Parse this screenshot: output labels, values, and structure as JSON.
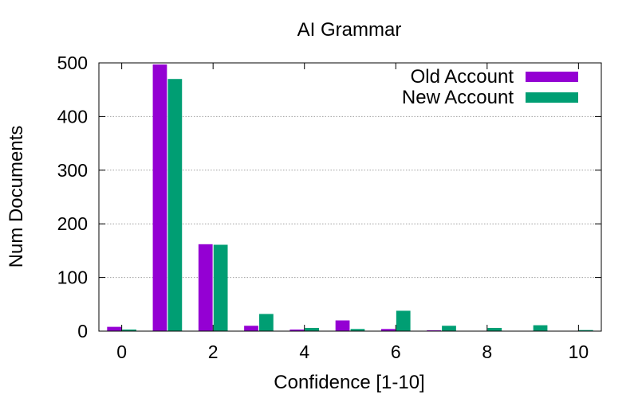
{
  "chart_data": {
    "type": "bar",
    "title": "AI Grammar",
    "xlabel": "Confidence [1-10]",
    "ylabel": "Num Documents",
    "xlim": [
      -0.5,
      10.5
    ],
    "ylim": [
      0,
      500
    ],
    "x_ticks": [
      0,
      2,
      4,
      6,
      8,
      10
    ],
    "y_ticks": [
      0,
      100,
      200,
      300,
      400,
      500
    ],
    "grid": true,
    "legend_position": "top-right",
    "categories": [
      0,
      1,
      2,
      3,
      4,
      5,
      6,
      7,
      8,
      9,
      10
    ],
    "series": [
      {
        "name": "Old Account",
        "color": "#9400d3",
        "values": [
          8,
          497,
          162,
          10,
          3,
          20,
          4,
          1,
          0,
          0,
          0
        ]
      },
      {
        "name": "New Account",
        "color": "#009e73",
        "values": [
          3,
          470,
          161,
          32,
          6,
          4,
          38,
          10,
          6,
          11,
          2
        ]
      }
    ]
  }
}
